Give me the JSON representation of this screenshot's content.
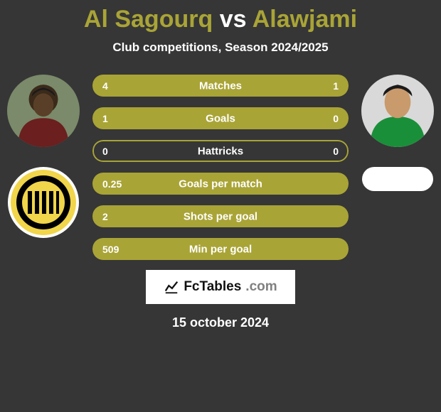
{
  "title": {
    "player1": "Al Sagourq",
    "vs": "vs",
    "player2": "Alawjami"
  },
  "subtitle": "Club competitions, Season 2024/2025",
  "colors": {
    "background": "#363636",
    "accent": "#a9a436",
    "track": "#5a5722",
    "text": "#ffffff",
    "brand_bg": "#ffffff",
    "brand_text": "#111111"
  },
  "bars": [
    {
      "label": "Matches",
      "left": "4",
      "right": "1",
      "left_pct": 80,
      "right_pct": 20
    },
    {
      "label": "Goals",
      "left": "1",
      "right": "0",
      "left_pct": 100,
      "right_pct": 0
    },
    {
      "label": "Hattricks",
      "left": "0",
      "right": "0",
      "left_pct": 0,
      "right_pct": 0
    },
    {
      "label": "Goals per match",
      "left": "0.25",
      "right": "",
      "left_pct": 100,
      "right_pct": 0
    },
    {
      "label": "Shots per goal",
      "left": "2",
      "right": "",
      "left_pct": 100,
      "right_pct": 0
    },
    {
      "label": "Min per goal",
      "left": "509",
      "right": "",
      "left_pct": 100,
      "right_pct": 0
    }
  ],
  "brand": {
    "name": "FcTables",
    "suffix": ".com"
  },
  "date": "15 october 2024",
  "left_club": {
    "name": "Ittihad Club",
    "primary": "#000000",
    "secondary": "#f1d54a"
  },
  "right_club": {
    "name": "",
    "primary": "#ffffff"
  },
  "avatars": {
    "left_bg": "#7a8a6a",
    "right_bg": "#d9d9d9"
  }
}
